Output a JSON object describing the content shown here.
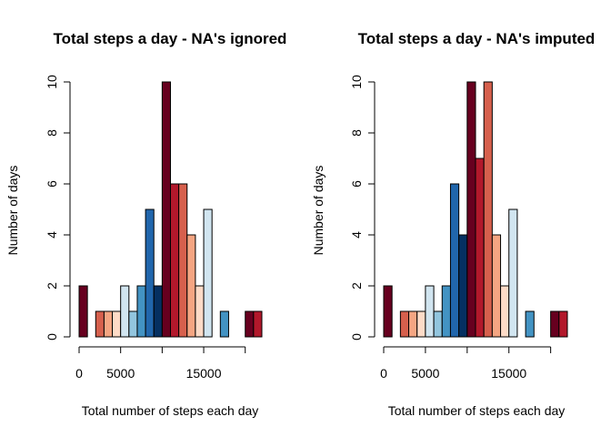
{
  "colors": [
    "#67001F",
    "#B2182B",
    "#D6604D",
    "#F4A582",
    "#FDDBC7",
    "#D1E5F0",
    "#92C5DE",
    "#4393C3",
    "#2166AC",
    "#053061"
  ],
  "chart_data": [
    {
      "type": "bar",
      "title": "Total steps a day - NA's ignored",
      "xlabel": "Total number of steps each day",
      "ylabel": "Number of days",
      "bin_width": 1000,
      "bin_starts": [
        0,
        1000,
        2000,
        3000,
        4000,
        5000,
        6000,
        7000,
        8000,
        9000,
        10000,
        11000,
        12000,
        13000,
        14000,
        15000,
        16000,
        17000,
        18000,
        19000,
        20000,
        21000
      ],
      "values": [
        2,
        0,
        1,
        1,
        1,
        2,
        1,
        2,
        5,
        2,
        10,
        6,
        6,
        4,
        2,
        5,
        0,
        1,
        0,
        0,
        1,
        1
      ],
      "xlim": [
        0,
        22000
      ],
      "ylim": [
        0,
        10
      ],
      "x_ticks": [
        0,
        5000,
        10000,
        15000,
        20000
      ],
      "x_tick_labels": [
        "0",
        "5000",
        "",
        "15000",
        ""
      ],
      "y_ticks": [
        0,
        2,
        4,
        6,
        8,
        10
      ],
      "y_tick_labels": [
        "0",
        "2",
        "4",
        "6",
        "8",
        "10"
      ]
    },
    {
      "type": "bar",
      "title": "Total steps a day - NA's imputed",
      "xlabel": "Total number of steps each day",
      "ylabel": "Number of days",
      "bin_width": 1000,
      "bin_starts": [
        0,
        1000,
        2000,
        3000,
        4000,
        5000,
        6000,
        7000,
        8000,
        9000,
        10000,
        11000,
        12000,
        13000,
        14000,
        15000,
        16000,
        17000,
        18000,
        19000,
        20000,
        21000
      ],
      "values": [
        2,
        0,
        1,
        1,
        1,
        2,
        1,
        2,
        6,
        4,
        10,
        7,
        10,
        4,
        2,
        5,
        0,
        1,
        0,
        0,
        1,
        1
      ],
      "xlim": [
        0,
        22000
      ],
      "ylim": [
        0,
        10
      ],
      "x_ticks": [
        0,
        5000,
        10000,
        15000,
        20000
      ],
      "x_tick_labels": [
        "0",
        "5000",
        "",
        "15000",
        ""
      ],
      "y_ticks": [
        0,
        2,
        4,
        6,
        8,
        10
      ],
      "y_tick_labels": [
        "0",
        "2",
        "4",
        "6",
        "8",
        "10"
      ]
    }
  ]
}
